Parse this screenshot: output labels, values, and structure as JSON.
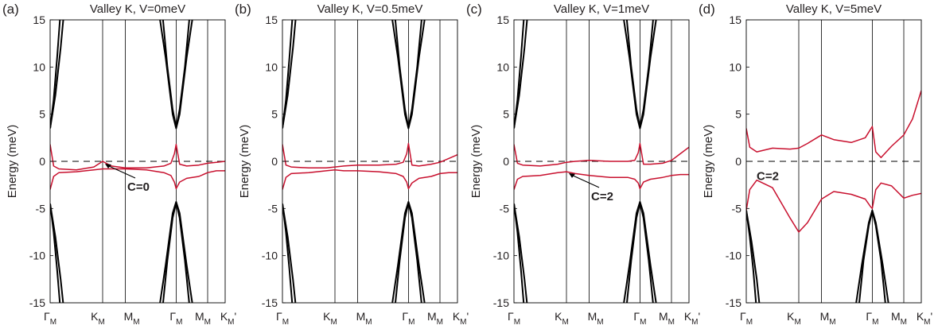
{
  "chart_data": [
    {
      "type": "line",
      "panel_label": "(a)",
      "title": "Valley K, V=0meV",
      "ylabel": "Energy (meV)",
      "ylim": [
        -15,
        15
      ],
      "yticks": [
        "-15",
        "-10",
        "-5",
        "0",
        "5",
        "10",
        "15"
      ],
      "k_path": [
        "ΓM",
        "KM",
        "MM",
        "ΓM",
        "MM",
        "KM'"
      ],
      "k_ticks": [
        0,
        0.3,
        0.43,
        0.72,
        0.9,
        1.0
      ],
      "zero_line": "dashed",
      "annotation": {
        "text": "C=0",
        "arrow_to": [
          0.3,
          0.0
        ]
      },
      "series": [
        {
          "color": "#c8102e",
          "x": [
            0.0,
            0.02,
            0.05,
            0.15,
            0.25,
            0.3,
            0.35,
            0.43,
            0.55,
            0.65,
            0.69,
            0.71,
            0.72,
            0.74,
            0.78,
            0.85,
            0.9,
            0.95,
            1.0
          ],
          "y": [
            1.8,
            -0.5,
            -0.8,
            -0.9,
            -0.6,
            0.0,
            -0.5,
            -0.7,
            -0.7,
            -0.5,
            -0.2,
            0.8,
            1.8,
            -0.3,
            -0.5,
            -0.4,
            -0.2,
            -0.1,
            0.0
          ]
        },
        {
          "color": "#c8102e",
          "x": [
            0.0,
            0.02,
            0.05,
            0.15,
            0.25,
            0.3,
            0.35,
            0.43,
            0.55,
            0.65,
            0.69,
            0.71,
            0.72,
            0.74,
            0.78,
            0.85,
            0.9,
            0.95,
            1.0
          ],
          "y": [
            -3.0,
            -1.6,
            -1.2,
            -1.1,
            -0.9,
            -0.8,
            -0.8,
            -0.8,
            -0.9,
            -1.2,
            -1.5,
            -2.2,
            -2.9,
            -2.2,
            -1.8,
            -1.6,
            -1.2,
            -1.0,
            -1.0
          ]
        },
        {
          "color": "#000000",
          "x": [
            0.0,
            0.02,
            0.04,
            0.06
          ],
          "y": [
            3.5,
            6.5,
            11.0,
            16.0
          ]
        },
        {
          "color": "#000000",
          "x": [
            0.0,
            0.03,
            0.06,
            0.08
          ],
          "y": [
            3.5,
            7.0,
            12.0,
            16.0
          ]
        },
        {
          "color": "#000000",
          "x": [
            0.0,
            0.02,
            0.04,
            0.06
          ],
          "y": [
            -4.5,
            -7.5,
            -11.5,
            -16.0
          ]
        },
        {
          "color": "#000000",
          "x": [
            0.0,
            0.03,
            0.06,
            0.08
          ],
          "y": [
            -4.5,
            -8.0,
            -12.5,
            -16.0
          ]
        },
        {
          "color": "#000000",
          "x": [
            0.62,
            0.66,
            0.7,
            0.72,
            0.74,
            0.78,
            0.82
          ],
          "y": [
            16.0,
            11.0,
            5.0,
            3.5,
            5.0,
            11.0,
            16.0
          ]
        },
        {
          "color": "#000000",
          "x": [
            0.64,
            0.67,
            0.7,
            0.72,
            0.74,
            0.77,
            0.8
          ],
          "y": [
            16.0,
            10.0,
            5.5,
            3.6,
            5.5,
            10.0,
            16.0
          ]
        },
        {
          "color": "#000000",
          "x": [
            0.62,
            0.66,
            0.7,
            0.72,
            0.74,
            0.78,
            0.82
          ],
          "y": [
            -16.0,
            -11.0,
            -5.5,
            -4.3,
            -5.5,
            -11.0,
            -16.0
          ]
        },
        {
          "color": "#000000",
          "x": [
            0.64,
            0.67,
            0.7,
            0.72,
            0.74,
            0.77,
            0.8
          ],
          "y": [
            -16.0,
            -10.5,
            -6.0,
            -4.4,
            -6.0,
            -10.5,
            -16.0
          ]
        }
      ]
    },
    {
      "type": "line",
      "panel_label": "(b)",
      "title": "Valley K, V=0.5meV",
      "ylabel": "Energy (meV)",
      "ylim": [
        -15,
        15
      ],
      "yticks": [
        "-15",
        "-10",
        "-5",
        "0",
        "5",
        "10",
        "15"
      ],
      "k_path": [
        "ΓM",
        "KM",
        "MM",
        "ΓM",
        "MM",
        "KM'"
      ],
      "k_ticks": [
        0,
        0.3,
        0.43,
        0.72,
        0.9,
        1.0
      ],
      "zero_line": "dashed",
      "series": [
        {
          "color": "#c8102e",
          "x": [
            0.0,
            0.02,
            0.05,
            0.15,
            0.25,
            0.3,
            0.35,
            0.43,
            0.55,
            0.65,
            0.69,
            0.71,
            0.72,
            0.74,
            0.78,
            0.85,
            0.9,
            0.95,
            1.0
          ],
          "y": [
            1.8,
            -0.4,
            -0.6,
            -0.7,
            -0.7,
            -0.6,
            -0.5,
            -0.4,
            -0.4,
            -0.3,
            -0.1,
            0.8,
            1.9,
            -0.4,
            -0.5,
            -0.3,
            -0.1,
            0.3,
            0.7
          ]
        },
        {
          "color": "#c8102e",
          "x": [
            0.0,
            0.02,
            0.05,
            0.15,
            0.25,
            0.3,
            0.35,
            0.43,
            0.55,
            0.65,
            0.69,
            0.71,
            0.72,
            0.74,
            0.78,
            0.85,
            0.9,
            0.95,
            1.0
          ],
          "y": [
            -3.0,
            -1.7,
            -1.3,
            -1.2,
            -1.0,
            -0.9,
            -1.0,
            -1.0,
            -1.1,
            -1.3,
            -1.6,
            -2.2,
            -2.9,
            -2.3,
            -1.8,
            -1.6,
            -1.3,
            -1.2,
            -1.2
          ]
        },
        {
          "color": "#000000",
          "x": [
            0.0,
            0.02,
            0.04,
            0.06
          ],
          "y": [
            3.5,
            6.5,
            11.0,
            16.0
          ]
        },
        {
          "color": "#000000",
          "x": [
            0.0,
            0.03,
            0.06,
            0.08
          ],
          "y": [
            3.5,
            7.0,
            12.0,
            16.0
          ]
        },
        {
          "color": "#000000",
          "x": [
            0.0,
            0.02,
            0.04,
            0.06
          ],
          "y": [
            -4.5,
            -7.5,
            -11.5,
            -16.0
          ]
        },
        {
          "color": "#000000",
          "x": [
            0.0,
            0.03,
            0.06,
            0.08
          ],
          "y": [
            -4.5,
            -8.0,
            -12.5,
            -16.0
          ]
        },
        {
          "color": "#000000",
          "x": [
            0.62,
            0.66,
            0.7,
            0.72,
            0.74,
            0.78,
            0.82
          ],
          "y": [
            16.0,
            11.0,
            5.0,
            3.5,
            5.0,
            11.0,
            16.0
          ]
        },
        {
          "color": "#000000",
          "x": [
            0.64,
            0.67,
            0.7,
            0.72,
            0.74,
            0.77,
            0.8
          ],
          "y": [
            16.0,
            10.0,
            5.5,
            3.6,
            5.5,
            10.0,
            16.0
          ]
        },
        {
          "color": "#000000",
          "x": [
            0.62,
            0.66,
            0.7,
            0.72,
            0.74,
            0.78,
            0.82
          ],
          "y": [
            -16.0,
            -11.0,
            -5.5,
            -4.3,
            -5.5,
            -11.0,
            -16.0
          ]
        },
        {
          "color": "#000000",
          "x": [
            0.64,
            0.67,
            0.7,
            0.72,
            0.74,
            0.77,
            0.8
          ],
          "y": [
            -16.0,
            -10.5,
            -6.0,
            -4.4,
            -6.0,
            -10.5,
            -16.0
          ]
        }
      ]
    },
    {
      "type": "line",
      "panel_label": "(c)",
      "title": "Valley K, V=1meV",
      "ylabel": "Energy (meV)",
      "ylim": [
        -15,
        15
      ],
      "yticks": [
        "-15",
        "-10",
        "-5",
        "0",
        "5",
        "10",
        "15"
      ],
      "k_path": [
        "ΓM",
        "KM",
        "MM",
        "ΓM",
        "MM",
        "KM'"
      ],
      "k_ticks": [
        0,
        0.3,
        0.43,
        0.72,
        0.9,
        1.0
      ],
      "zero_line": "dashed",
      "annotation": {
        "text": "C=2",
        "arrow_to": [
          0.3,
          -1.0
        ]
      },
      "series": [
        {
          "color": "#c8102e",
          "x": [
            0.0,
            0.02,
            0.05,
            0.15,
            0.25,
            0.3,
            0.35,
            0.43,
            0.55,
            0.65,
            0.69,
            0.71,
            0.72,
            0.74,
            0.78,
            0.85,
            0.9,
            0.95,
            1.0
          ],
          "y": [
            1.8,
            -0.2,
            -0.4,
            -0.5,
            -0.3,
            -0.1,
            0.0,
            0.1,
            0.0,
            0.0,
            0.1,
            0.9,
            1.9,
            -0.3,
            -0.3,
            -0.2,
            0.1,
            0.8,
            1.5
          ]
        },
        {
          "color": "#c8102e",
          "x": [
            0.0,
            0.02,
            0.05,
            0.15,
            0.25,
            0.3,
            0.35,
            0.43,
            0.55,
            0.65,
            0.69,
            0.71,
            0.72,
            0.74,
            0.78,
            0.85,
            0.9,
            0.95,
            1.0
          ],
          "y": [
            -3.0,
            -1.9,
            -1.6,
            -1.5,
            -1.2,
            -1.1,
            -1.3,
            -1.5,
            -1.7,
            -1.7,
            -1.9,
            -2.3,
            -2.9,
            -2.2,
            -1.9,
            -1.7,
            -1.5,
            -1.4,
            -1.4
          ]
        },
        {
          "color": "#000000",
          "x": [
            0.0,
            0.02,
            0.04,
            0.06
          ],
          "y": [
            3.5,
            6.5,
            11.0,
            16.0
          ]
        },
        {
          "color": "#000000",
          "x": [
            0.0,
            0.03,
            0.06,
            0.08
          ],
          "y": [
            3.5,
            7.0,
            12.0,
            16.0
          ]
        },
        {
          "color": "#000000",
          "x": [
            0.0,
            0.02,
            0.04,
            0.06
          ],
          "y": [
            -4.5,
            -7.5,
            -11.5,
            -16.0
          ]
        },
        {
          "color": "#000000",
          "x": [
            0.0,
            0.03,
            0.06,
            0.08
          ],
          "y": [
            -4.5,
            -8.0,
            -12.5,
            -16.0
          ]
        },
        {
          "color": "#000000",
          "x": [
            0.62,
            0.66,
            0.7,
            0.72,
            0.74,
            0.78,
            0.82
          ],
          "y": [
            16.0,
            11.0,
            5.0,
            3.5,
            5.0,
            11.0,
            16.0
          ]
        },
        {
          "color": "#000000",
          "x": [
            0.64,
            0.67,
            0.7,
            0.72,
            0.74,
            0.77,
            0.8
          ],
          "y": [
            16.0,
            10.0,
            5.5,
            3.6,
            5.5,
            10.0,
            16.0
          ]
        },
        {
          "color": "#000000",
          "x": [
            0.62,
            0.66,
            0.7,
            0.72,
            0.74,
            0.78,
            0.82
          ],
          "y": [
            -16.0,
            -11.0,
            -5.5,
            -4.3,
            -5.5,
            -11.0,
            -16.0
          ]
        },
        {
          "color": "#000000",
          "x": [
            0.64,
            0.67,
            0.7,
            0.72,
            0.74,
            0.77,
            0.8
          ],
          "y": [
            -16.0,
            -10.5,
            -6.0,
            -4.4,
            -6.0,
            -10.5,
            -16.0
          ]
        }
      ]
    },
    {
      "type": "line",
      "panel_label": "(d)",
      "title": "Valley K, V=5meV",
      "ylabel": "Energy (meV)",
      "ylim": [
        -15,
        15
      ],
      "yticks": [
        "-15",
        "-10",
        "-5",
        "0",
        "5",
        "10",
        "15"
      ],
      "k_path": [
        "ΓM",
        "KM",
        "MM",
        "ΓM",
        "MM",
        "KM'"
      ],
      "k_ticks": [
        0,
        0.3,
        0.43,
        0.72,
        0.9,
        1.0
      ],
      "zero_line": "dashed",
      "annotation": {
        "text": "C=2"
      },
      "series": [
        {
          "color": "#c8102e",
          "x": [
            0.0,
            0.02,
            0.06,
            0.15,
            0.25,
            0.3,
            0.35,
            0.43,
            0.5,
            0.6,
            0.68,
            0.71,
            0.72,
            0.74,
            0.77,
            0.83,
            0.9,
            0.95,
            1.0
          ],
          "y": [
            3.5,
            1.5,
            1.0,
            1.4,
            1.3,
            1.4,
            1.9,
            2.8,
            2.3,
            2.0,
            2.5,
            3.4,
            3.7,
            1.0,
            0.4,
            1.6,
            2.8,
            4.5,
            7.5
          ]
        },
        {
          "color": "#c8102e",
          "x": [
            0.0,
            0.02,
            0.06,
            0.15,
            0.25,
            0.3,
            0.35,
            0.43,
            0.5,
            0.6,
            0.68,
            0.71,
            0.72,
            0.74,
            0.77,
            0.83,
            0.9,
            0.95,
            1.0
          ],
          "y": [
            -5.2,
            -3.0,
            -2.0,
            -2.8,
            -6.0,
            -7.5,
            -6.5,
            -4.0,
            -3.2,
            -3.5,
            -4.0,
            -4.8,
            -5.0,
            -3.0,
            -2.3,
            -2.6,
            -3.9,
            -3.6,
            -3.4
          ]
        },
        {
          "color": "#000000",
          "x": [
            0.0,
            0.02,
            0.04,
            0.06
          ],
          "y": [
            -5.2,
            -8.0,
            -11.5,
            -16.0
          ]
        },
        {
          "color": "#000000",
          "x": [
            0.0,
            0.03,
            0.06,
            0.08
          ],
          "y": [
            -5.2,
            -8.5,
            -12.5,
            -16.0
          ]
        },
        {
          "color": "#000000",
          "x": [
            0.62,
            0.66,
            0.7,
            0.72,
            0.74,
            0.78,
            0.82
          ],
          "y": [
            -16.0,
            -11.0,
            -6.5,
            -5.2,
            -6.5,
            -11.0,
            -16.0
          ]
        },
        {
          "color": "#000000",
          "x": [
            0.64,
            0.67,
            0.7,
            0.72,
            0.74,
            0.77,
            0.8
          ],
          "y": [
            -16.0,
            -10.5,
            -6.8,
            -5.3,
            -6.8,
            -10.5,
            -16.0
          ]
        }
      ]
    }
  ]
}
